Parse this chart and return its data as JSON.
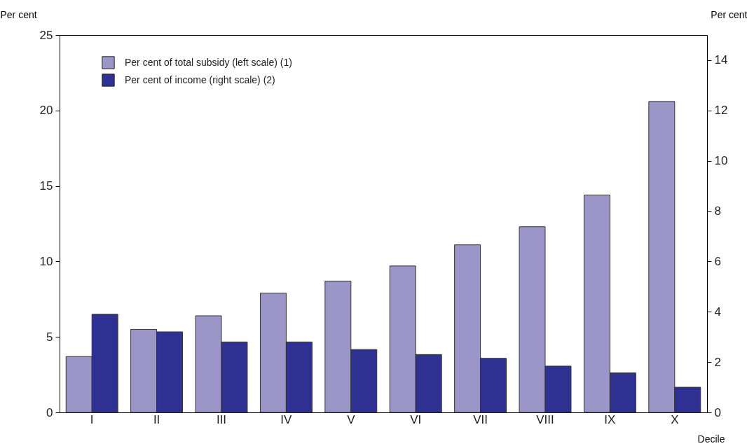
{
  "chart_data": {
    "type": "bar",
    "xlabel": "Decile",
    "ylabel": "Per cent",
    "y2label": "Per cent",
    "categories": [
      "I",
      "II",
      "III",
      "IV",
      "V",
      "VI",
      "VII",
      "VIII",
      "IX",
      "X"
    ],
    "series": [
      {
        "name": "Per cent of total subsidy (left scale) (1)",
        "color": "#9c96c8",
        "values": [
          3.7,
          5.5,
          6.4,
          7.9,
          8.7,
          9.7,
          11.1,
          12.3,
          14.4,
          20.6
        ]
      },
      {
        "name": "Per cent of income (right scale) (2)",
        "color": "#2e3192",
        "axis": "y2",
        "values": [
          3.9,
          3.2,
          2.8,
          2.8,
          2.5,
          2.3,
          2.15,
          1.84,
          1.57,
          1.0
        ]
      }
    ],
    "ylim": [
      0,
      25
    ],
    "yticks": [
      0,
      5,
      10,
      15,
      20,
      25
    ],
    "y2lim": [
      0,
      15
    ],
    "y2ticks": [
      0,
      2,
      4,
      6,
      8,
      10,
      12,
      14
    ],
    "grid": false,
    "legend": "top left"
  }
}
